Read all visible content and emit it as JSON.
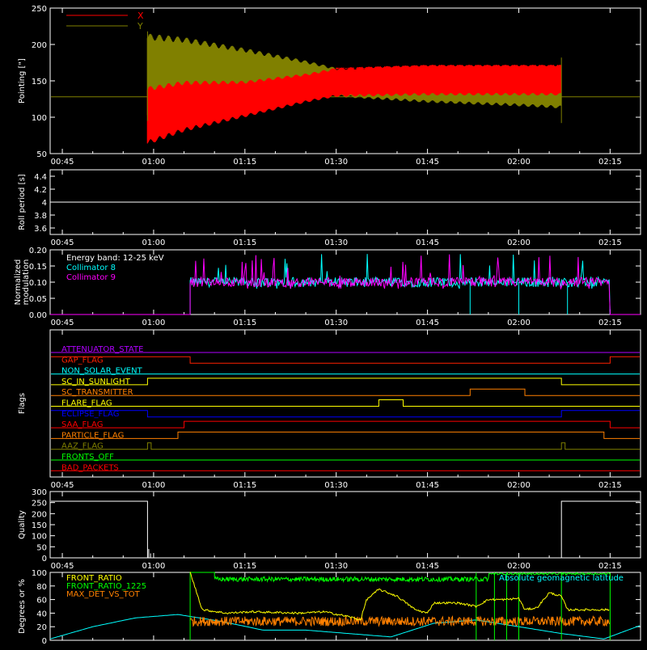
{
  "chart_data": [
    {
      "type": "line",
      "ylabel": "Pointing [\"]",
      "ylim": [
        50,
        250
      ],
      "yticks": [
        50,
        100,
        150,
        200,
        250
      ],
      "xticks": [
        "00:45",
        "01:00",
        "01:15",
        "01:30",
        "01:45",
        "02:00",
        "02:15"
      ],
      "legend_position": "top-left",
      "series": [
        {
          "name": "X",
          "color": "#ff0000",
          "baseline": 128,
          "active_range": [
            "00:59",
            "02:07"
          ],
          "envelope_time": [
            "00:59",
            "01:05",
            "01:15",
            "01:25",
            "01:30",
            "01:45",
            "02:00",
            "02:07"
          ],
          "envelope_low": [
            62,
            80,
            100,
            120,
            128,
            130,
            130,
            130
          ],
          "envelope_high": [
            142,
            150,
            150,
            160,
            168,
            172,
            172,
            172
          ]
        },
        {
          "name": "Y",
          "color": "#808000",
          "baseline": 128,
          "active_range": [
            "00:59",
            "02:07"
          ],
          "envelope_time": [
            "00:59",
            "01:05",
            "01:15",
            "01:25",
            "01:30",
            "01:45",
            "02:00",
            "02:07"
          ],
          "envelope_low": [
            100,
            112,
            120,
            125,
            128,
            120,
            115,
            112
          ],
          "envelope_high": [
            215,
            210,
            195,
            178,
            168,
            163,
            163,
            162
          ]
        }
      ]
    },
    {
      "type": "line",
      "ylabel": "Roll period [s]",
      "ylim": [
        3.5,
        4.5
      ],
      "yticks": [
        3.6,
        3.8,
        4.0,
        4.2,
        4.4
      ],
      "xticks": [
        "00:45",
        "01:00",
        "01:15",
        "01:30",
        "01:45",
        "02:00",
        "02:15"
      ],
      "series": [
        {
          "values": [
            4.0
          ],
          "color": "#ffffff"
        }
      ]
    },
    {
      "type": "line",
      "ylabel": "Normalized modulation",
      "ylim": [
        0.0,
        0.2
      ],
      "yticks": [
        "0.00",
        "0.05",
        "0.10",
        "0.15",
        "0.20"
      ],
      "xticks": [
        "00:45",
        "01:00",
        "01:15",
        "01:30",
        "01:45",
        "02:00",
        "02:15"
      ],
      "annotation": "Energy band: 12-25 keV",
      "active_range": [
        "01:06",
        "02:15"
      ],
      "series": [
        {
          "name": "Collimator 8",
          "color": "#00ffff",
          "mean": 0.1
        },
        {
          "name": "Collimator 9",
          "color": "#ff00ff",
          "mean": 0.1
        }
      ]
    },
    {
      "type": "line",
      "ylabel": "Flags",
      "xticks": [
        "00:45",
        "01:00",
        "01:15",
        "01:30",
        "01:45",
        "02:00",
        "02:15"
      ],
      "series": [
        {
          "name": "ATTENUATOR_STATE",
          "color": "#b000ff",
          "transitions": []
        },
        {
          "name": "GAP_FLAG",
          "color": "#ff2000",
          "start_high": true,
          "transitions": [
            "01:06",
            "02:15"
          ]
        },
        {
          "name": "NON_SOLAR_EVENT",
          "color": "#00ffff",
          "start_high": false,
          "transitions": []
        },
        {
          "name": "SC_IN_SUNLIGHT",
          "color": "#ffff00",
          "start_high": false,
          "transitions": [
            "00:59",
            "02:07"
          ]
        },
        {
          "name": "SC_TRANSMITTER",
          "color": "#ff8000",
          "start_high": false,
          "transitions": [
            "01:52",
            "02:01"
          ]
        },
        {
          "name": "FLARE_FLAG",
          "color": "#ffff00",
          "start_high": false,
          "transitions": [
            "01:37",
            "01:41"
          ]
        },
        {
          "name": "ECLIPSE_FLAG",
          "color": "#0000ff",
          "start_high": true,
          "transitions": [
            "00:59",
            "02:07"
          ]
        },
        {
          "name": "SAA_FLAG",
          "color": "#ff0000",
          "start_high": false,
          "transitions": [
            "01:05",
            "02:15"
          ]
        },
        {
          "name": "PARTICLE_FLAG",
          "color": "#ff8000",
          "start_high": false,
          "transitions": [
            "01:04",
            "02:14"
          ]
        },
        {
          "name": "AAZ_FLAG",
          "color": "#808000",
          "start_high": false,
          "transitions": [
            "00:59",
            "00:59.6",
            "02:07",
            "02:07.6"
          ]
        },
        {
          "name": "FRONTS_OFF",
          "color": "#00ff00",
          "start_high": false,
          "transitions": []
        },
        {
          "name": "BAD_PACKETS",
          "color": "#ff0000",
          "start_high": false,
          "transitions": []
        }
      ]
    },
    {
      "type": "line",
      "ylabel": "Quality",
      "ylim": [
        0,
        300
      ],
      "yticks": [
        0,
        50,
        100,
        150,
        200,
        250,
        300
      ],
      "xticks": [
        "00:45",
        "01:00",
        "01:15",
        "01:30",
        "01:45",
        "02:00",
        "02:15"
      ],
      "series": [
        {
          "color": "#ffffff",
          "high": 256,
          "low": 0,
          "high_ranges": [
            [
              "00:43",
              "00:59"
            ],
            [
              "02:07",
              "02:20"
            ]
          ]
        }
      ]
    },
    {
      "type": "line",
      "ylabel": "Degrees or %",
      "ylim": [
        0,
        100
      ],
      "yticks": [
        0,
        20,
        40,
        60,
        80,
        100
      ],
      "xticks": [],
      "series": [
        {
          "name": "FRONT_RATIO",
          "color": "#ffff00",
          "x": [
            "01:06",
            "01:08",
            "01:12",
            "01:16",
            "01:20",
            "01:24",
            "01:28",
            "01:32",
            "01:34",
            "01:35",
            "01:37",
            "01:40",
            "01:43",
            "01:45",
            "01:46",
            "01:50",
            "01:53",
            "01:55",
            "01:58",
            "02:00",
            "02:01",
            "02:03",
            "02:05",
            "02:07",
            "02:08",
            "02:15"
          ],
          "y": [
            100,
            45,
            40,
            42,
            41,
            40,
            42,
            35,
            30,
            60,
            75,
            65,
            45,
            40,
            55,
            55,
            50,
            60,
            60,
            62,
            45,
            48,
            70,
            65,
            45,
            45
          ]
        },
        {
          "name": "FRONT_RATIO_1225",
          "color": "#00ff00",
          "mean": 90,
          "active_range": [
            "01:06",
            "02:15"
          ]
        },
        {
          "name": "MAX_DET_VS_TOT",
          "color": "#ff8000",
          "mean": 28,
          "active_range": [
            "01:06",
            "02:15"
          ]
        },
        {
          "name": "Absolute geomagnetic latitude",
          "color": "#00ffff",
          "x": [
            "00:43",
            "00:50",
            "00:57",
            "01:04",
            "01:11",
            "01:18",
            "01:25",
            "01:32",
            "01:39",
            "01:46",
            "01:53",
            "02:00",
            "02:07",
            "02:14",
            "02:20"
          ],
          "y": [
            2,
            20,
            33,
            38,
            28,
            15,
            15,
            10,
            5,
            25,
            30,
            20,
            10,
            2,
            22
          ]
        }
      ]
    }
  ]
}
